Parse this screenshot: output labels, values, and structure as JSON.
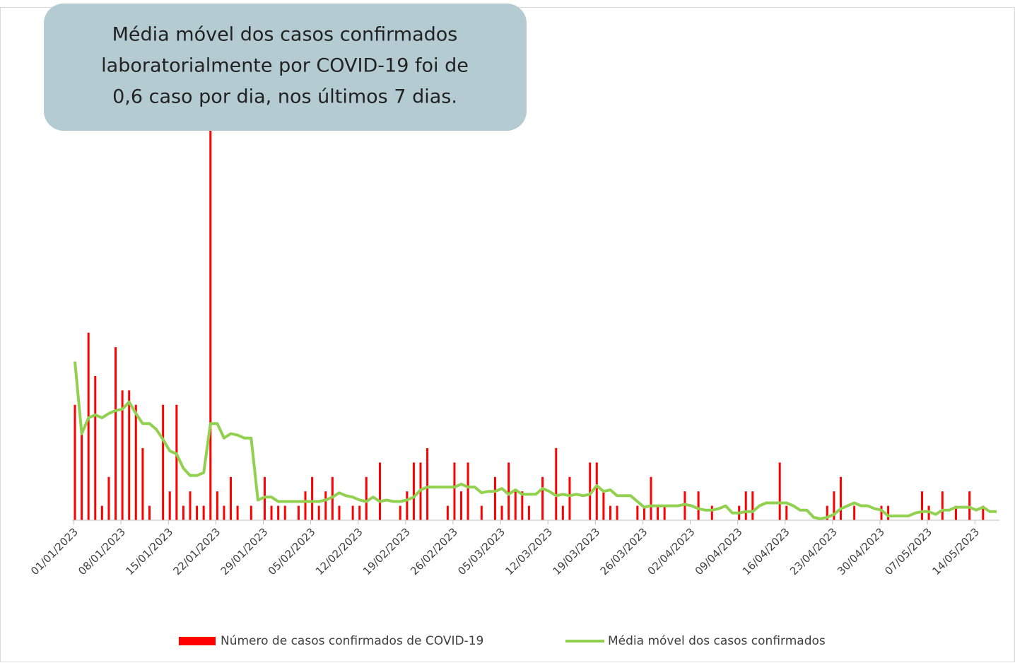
{
  "chart_data": {
    "type": "bar",
    "annotation": [
      "Média móvel dos casos confirmados",
      "laboratorialmente por COVID-19 foi de",
      "0,6 caso por dia, nos últimos 7 dias."
    ],
    "categories": [
      "01/01/2023",
      null,
      null,
      null,
      null,
      null,
      null,
      "08/01/2023",
      null,
      null,
      null,
      null,
      null,
      null,
      "15/01/2023",
      null,
      null,
      null,
      null,
      null,
      null,
      "22/01/2023",
      null,
      null,
      null,
      null,
      null,
      null,
      "29/01/2023",
      null,
      null,
      null,
      null,
      null,
      null,
      "05/02/2023",
      null,
      null,
      null,
      null,
      null,
      null,
      "12/02/2023",
      null,
      null,
      null,
      null,
      null,
      null,
      "19/02/2023",
      null,
      null,
      null,
      null,
      null,
      null,
      "26/02/2023",
      null,
      null,
      null,
      null,
      null,
      null,
      "05/03/2023",
      null,
      null,
      null,
      null,
      null,
      null,
      "12/03/2023",
      null,
      null,
      null,
      null,
      null,
      null,
      "19/03/2023",
      null,
      null,
      null,
      null,
      null,
      null,
      "26/03/2023",
      null,
      null,
      null,
      null,
      null,
      null,
      "02/04/2023",
      null,
      null,
      null,
      null,
      null,
      null,
      "09/04/2023",
      null,
      null,
      null,
      null,
      null,
      null,
      "16/04/2023",
      null,
      null,
      null,
      null,
      null,
      null,
      "23/04/2023",
      null,
      null,
      null,
      null,
      null,
      null,
      "30/04/2023",
      null,
      null,
      null,
      null,
      null,
      null,
      "07/05/2023",
      null,
      null,
      null,
      null,
      null,
      null,
      "14/05/2023",
      null,
      null,
      null
    ],
    "series": [
      {
        "name": "Número de casos confirmados de COVID-19",
        "type": "bar",
        "color": "#ff0000",
        "values": [
          8,
          6,
          13,
          10,
          1,
          3,
          12,
          9,
          9,
          8,
          5,
          1,
          0,
          8,
          2,
          8,
          1,
          2,
          1,
          1,
          27,
          2,
          1,
          3,
          1,
          0,
          1,
          0,
          3,
          1,
          1,
          1,
          0,
          1,
          2,
          3,
          1,
          2,
          3,
          1,
          0,
          1,
          1,
          3,
          0,
          4,
          0,
          0,
          1,
          2,
          4,
          4,
          5,
          0,
          0,
          1,
          4,
          2,
          4,
          0,
          1,
          0,
          3,
          1,
          4,
          2,
          2,
          1,
          0,
          3,
          0,
          5,
          1,
          3,
          0,
          0,
          4,
          4,
          2,
          1,
          1,
          0,
          0,
          1,
          1,
          3,
          1,
          1,
          0,
          0,
          2,
          0,
          2,
          0,
          1,
          0,
          0,
          0,
          1,
          2,
          2,
          0,
          0,
          0,
          4,
          1,
          0,
          0,
          0,
          0,
          0,
          1,
          2,
          3,
          0,
          1,
          0,
          0,
          0,
          1,
          1,
          0,
          0,
          0,
          0,
          2,
          1,
          0,
          2,
          0,
          1,
          0,
          2,
          0,
          1,
          0,
          0
        ]
      },
      {
        "name": "Média móvel dos casos confirmados",
        "type": "line",
        "color": "#92d050",
        "values": [
          11.0,
          6.0,
          7.1,
          7.3,
          7.1,
          7.4,
          7.6,
          7.7,
          8.2,
          7.4,
          6.7,
          6.7,
          6.3,
          5.6,
          4.8,
          4.6,
          3.6,
          3.1,
          3.1,
          3.3,
          6.7,
          6.7,
          5.7,
          6.0,
          5.9,
          5.7,
          5.7,
          1.4,
          1.6,
          1.6,
          1.3,
          1.3,
          1.3,
          1.3,
          1.3,
          1.3,
          1.3,
          1.4,
          1.6,
          1.9,
          1.7,
          1.6,
          1.4,
          1.3,
          1.6,
          1.3,
          1.4,
          1.3,
          1.3,
          1.4,
          1.6,
          2.1,
          2.3,
          2.3,
          2.3,
          2.3,
          2.3,
          2.5,
          2.3,
          2.3,
          1.9,
          2.0,
          2.0,
          2.2,
          1.8,
          2.1,
          1.8,
          1.8,
          1.8,
          2.2,
          2.0,
          1.7,
          1.8,
          1.7,
          1.8,
          1.7,
          1.8,
          2.4,
          2.0,
          2.1,
          1.7,
          1.7,
          1.7,
          1.3,
          0.9,
          1.0,
          1.0,
          1.0,
          1.0,
          1.0,
          1.1,
          1.0,
          0.8,
          0.7,
          0.7,
          0.8,
          1.0,
          0.5,
          0.5,
          0.6,
          0.6,
          1.0,
          1.2,
          1.2,
          1.2,
          1.2,
          1.0,
          0.7,
          0.7,
          0.2,
          0.1,
          0.2,
          0.4,
          0.8,
          1.0,
          1.2,
          1.0,
          1.0,
          0.8,
          0.7,
          0.3,
          0.3,
          0.3,
          0.3,
          0.5,
          0.6,
          0.6,
          0.4,
          0.7,
          0.7,
          0.9,
          0.9,
          0.9,
          0.7,
          0.9,
          0.6,
          0.6
        ]
      }
    ],
    "ylim": [
      0,
      27
    ],
    "legend": "bottom"
  }
}
